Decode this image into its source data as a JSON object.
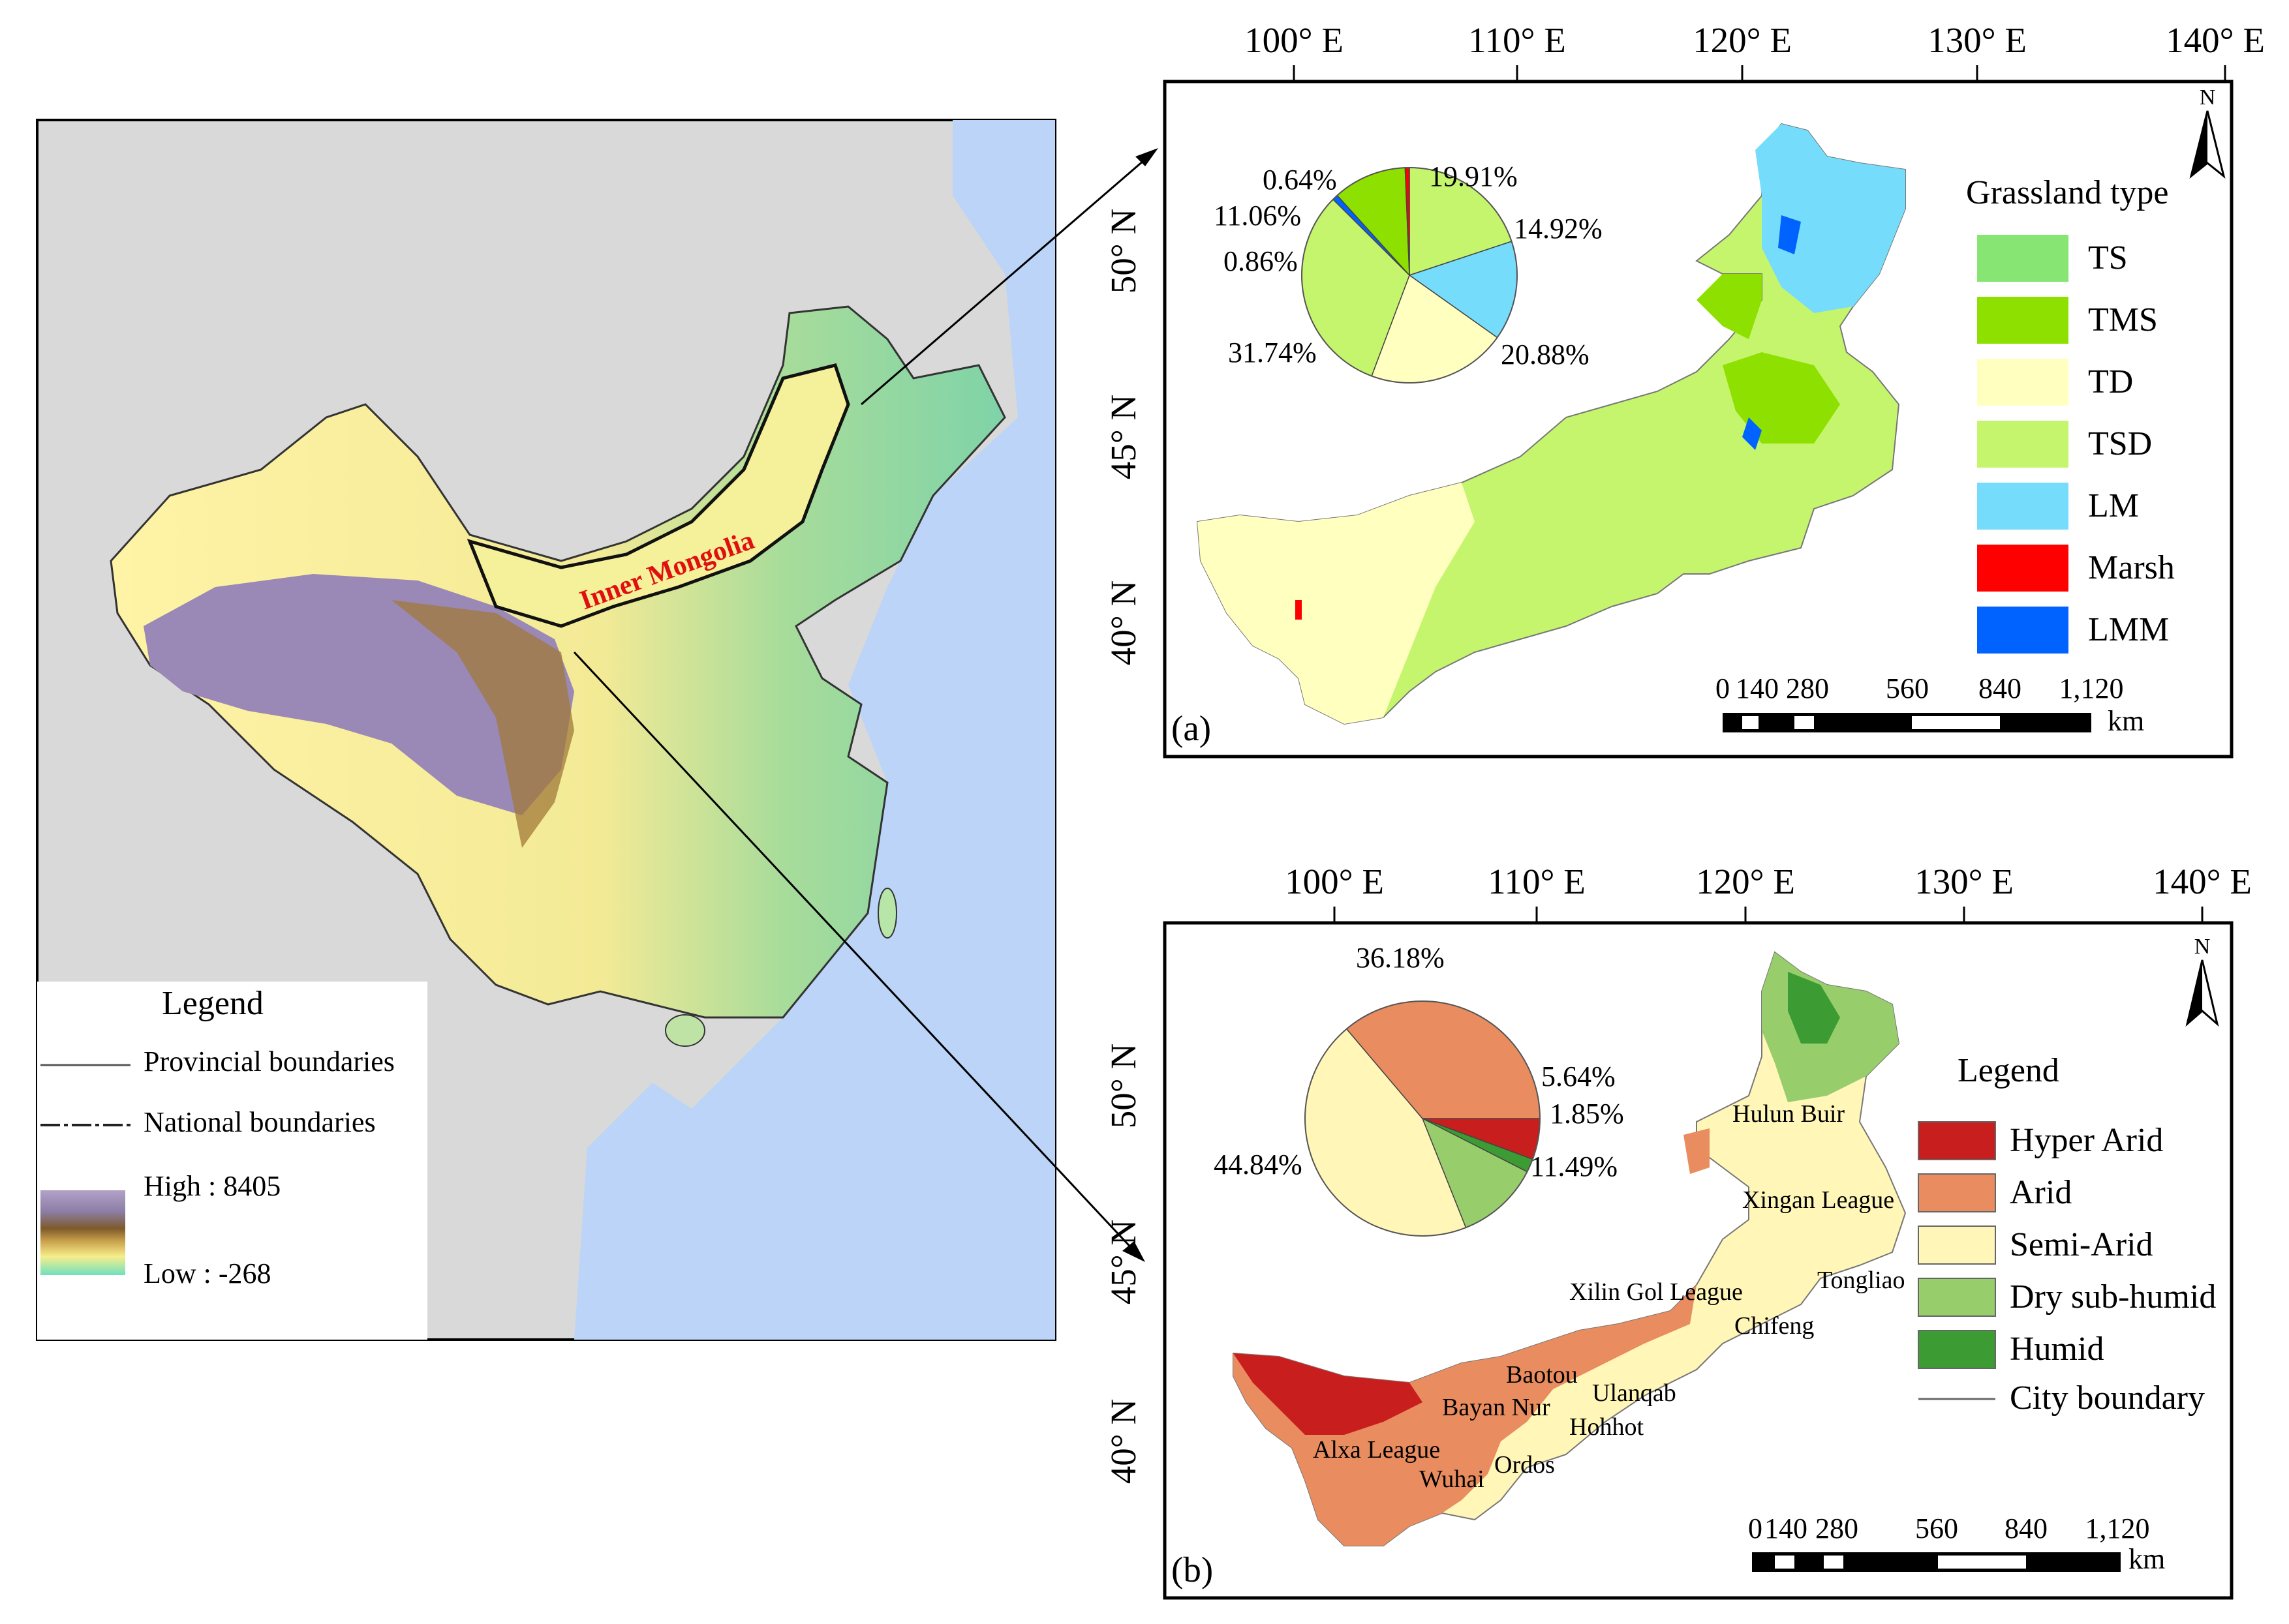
{
  "colors": {
    "land_bg": "#d9d9d9",
    "sea": "#bcd4f7",
    "TS": "#86e573",
    "TMS": "#8ee000",
    "TD": "#ffffc0",
    "TSD": "#c5f56d",
    "LM": "#76dcfb",
    "Marsh": "#ff0000",
    "LMM": "#0063ff",
    "hyper_arid": "#c81e1e",
    "arid": "#e98c5f",
    "semi_arid": "#fff6b8",
    "dry_subhumid": "#98cd6c",
    "humid": "#3c9b32"
  },
  "overview_map": {
    "region_label": "Inner Mongolia",
    "legend": {
      "title": "Legend",
      "provincial": "Provincial boundaries",
      "national": "National boundaries",
      "high": "High : 8405",
      "low": "Low : -268"
    }
  },
  "panel_a": {
    "tag": "(a)",
    "north": "N",
    "x_ticks": [
      "100° E",
      "110° E",
      "120° E",
      "130° E",
      "140° E"
    ],
    "y_ticks": [
      "50° N",
      "45° N",
      "40° N"
    ],
    "legend_title": "Grassland type",
    "legend": [
      "TS",
      "TMS",
      "TD",
      "TSD",
      "LM",
      "Marsh",
      "LMM"
    ],
    "scale": {
      "ticks": [
        "0",
        "140",
        "280",
        "560",
        "840",
        "1,120"
      ],
      "unit": "km"
    }
  },
  "panel_b": {
    "tag": "(b)",
    "north": "N",
    "x_ticks": [
      "100° E",
      "110° E",
      "120° E",
      "130° E",
      "140° E"
    ],
    "y_ticks": [
      "50° N",
      "45° N",
      "40° N"
    ],
    "legend_title": "Legend",
    "legend": [
      "Hyper Arid",
      "Arid",
      "Semi-Arid",
      "Dry sub-humid",
      "Humid",
      "City boundary"
    ],
    "cities": [
      "Hulun Buir",
      "Xingan League",
      "Tongliao",
      "Xilin Gol League",
      "Chifeng",
      "Baotou",
      "Ulanqab",
      "Bayan Nur",
      "Hohhot",
      "Alxa League",
      "Ordos",
      "Wuhai"
    ],
    "scale": {
      "ticks": [
        "0",
        "140",
        "280",
        "560",
        "840",
        "1,120"
      ],
      "unit": "km"
    }
  },
  "chart_data": [
    {
      "type": "pie",
      "slices": [
        {
          "label": "19.91%",
          "value": 19.91,
          "color": "#c5f56d"
        },
        {
          "label": "14.92%",
          "value": 14.92,
          "color": "#76dcfb"
        },
        {
          "label": "20.88%",
          "value": 20.88,
          "color": "#ffffc0"
        },
        {
          "label": "31.74%",
          "value": 31.74,
          "color": "#c5f56d"
        },
        {
          "label": "0.86%",
          "value": 0.86,
          "color": "#0063ff"
        },
        {
          "label": "11.06%",
          "value": 11.06,
          "color": "#8ee000"
        },
        {
          "label": "0.64%",
          "value": 0.64,
          "color": "#ff0000"
        }
      ]
    },
    {
      "type": "pie",
      "slices": [
        {
          "label": "5.64%",
          "value": 5.64,
          "color": "#c81e1e"
        },
        {
          "label": "1.85%",
          "value": 1.85,
          "color": "#3c9b32"
        },
        {
          "label": "11.49%",
          "value": 11.49,
          "color": "#98cd6c"
        },
        {
          "label": "44.84%",
          "value": 44.84,
          "color": "#fff6b8"
        },
        {
          "label": "36.18%",
          "value": 36.18,
          "color": "#e98c5f"
        }
      ]
    }
  ]
}
